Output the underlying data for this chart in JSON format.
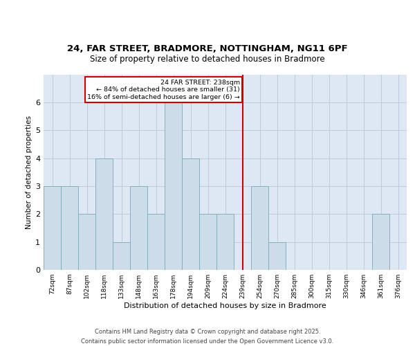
{
  "title_line1": "24, FAR STREET, BRADMORE, NOTTINGHAM, NG11 6PF",
  "title_line2": "Size of property relative to detached houses in Bradmore",
  "xlabel": "Distribution of detached houses by size in Bradmore",
  "ylabel": "Number of detached properties",
  "categories": [
    "72sqm",
    "87sqm",
    "102sqm",
    "118sqm",
    "133sqm",
    "148sqm",
    "163sqm",
    "178sqm",
    "194sqm",
    "209sqm",
    "224sqm",
    "239sqm",
    "254sqm",
    "270sqm",
    "285sqm",
    "300sqm",
    "315sqm",
    "330sqm",
    "346sqm",
    "361sqm",
    "376sqm"
  ],
  "values": [
    3,
    3,
    2,
    4,
    1,
    3,
    2,
    6,
    4,
    2,
    2,
    0,
    3,
    1,
    0,
    0,
    0,
    0,
    0,
    2,
    0
  ],
  "bar_color": "#ccdce8",
  "bar_edge_color": "#7aaabb",
  "bar_linewidth": 0.6,
  "marker_index": 11,
  "marker_color": "#cc0000",
  "ann_title": "24 FAR STREET: 238sqm",
  "ann_line2": "← 84% of detached houses are smaller (31)",
  "ann_line3": "16% of semi-detached houses are larger (6) →",
  "ylim_max": 7,
  "grid_color": "#bbccdd",
  "bg_color": "#dde8f2",
  "footer_line1": "Contains HM Land Registry data © Crown copyright and database right 2025.",
  "footer_line2": "Contains public sector information licensed under the Open Government Licence v3.0."
}
